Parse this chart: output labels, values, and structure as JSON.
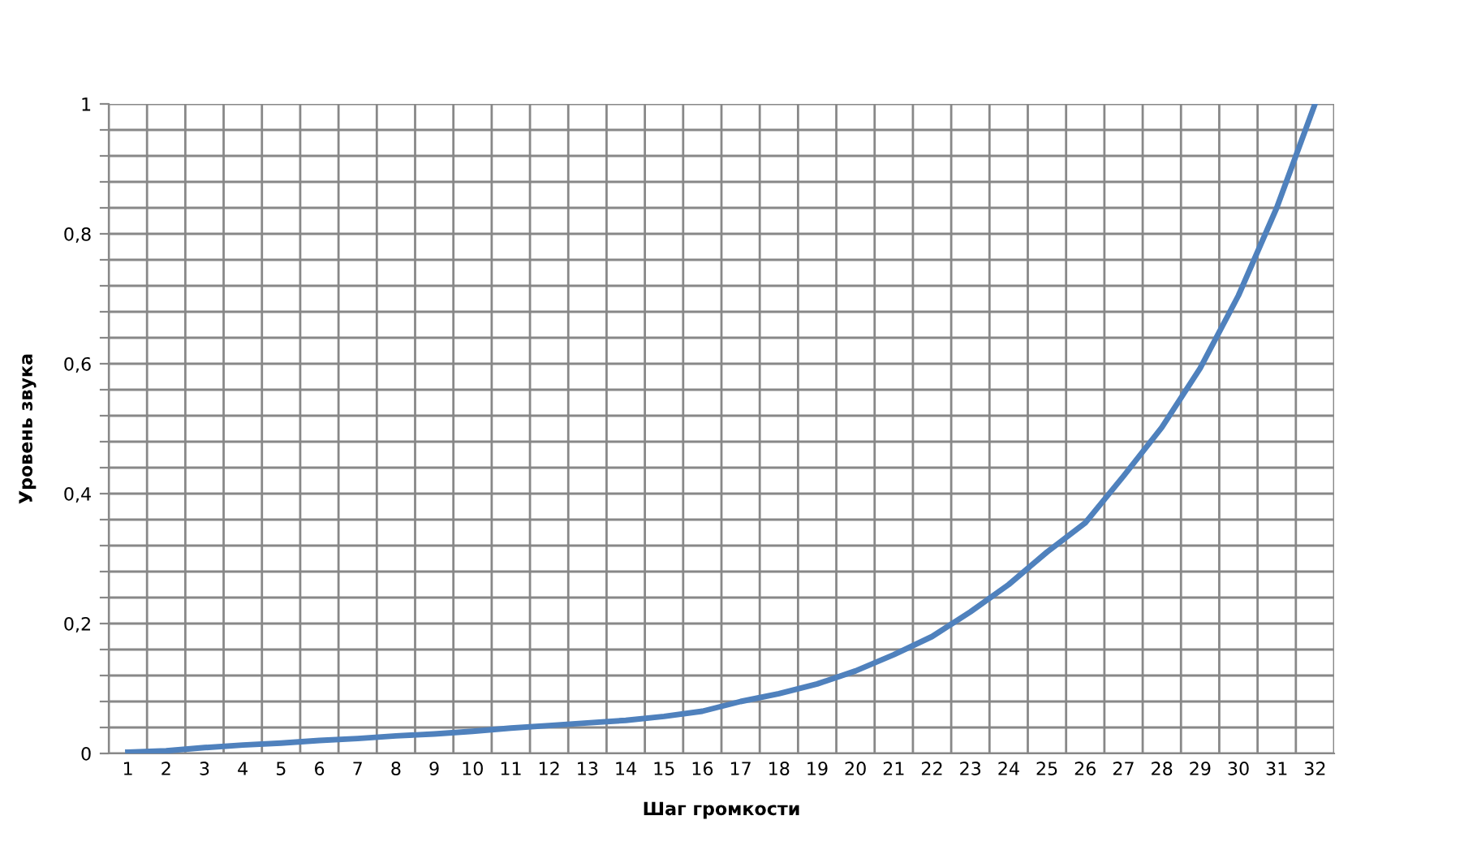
{
  "chart_data": {
    "type": "line",
    "xlabel": "Шаг громкости",
    "ylabel": "Уровень звука",
    "categories": [
      "1",
      "2",
      "3",
      "4",
      "5",
      "6",
      "7",
      "8",
      "9",
      "10",
      "11",
      "12",
      "13",
      "14",
      "15",
      "16",
      "17",
      "18",
      "19",
      "20",
      "21",
      "22",
      "23",
      "24",
      "25",
      "26",
      "27",
      "28",
      "29",
      "30",
      "31",
      "32"
    ],
    "series": [
      {
        "color": "#4f81bd",
        "values": [
          0.002,
          0.004,
          0.009,
          0.013,
          0.016,
          0.02,
          0.023,
          0.027,
          0.03,
          0.034,
          0.039,
          0.043,
          0.047,
          0.051,
          0.057,
          0.065,
          0.08,
          0.092,
          0.107,
          0.127,
          0.152,
          0.18,
          0.218,
          0.26,
          0.31,
          0.355,
          0.427,
          0.502,
          0.593,
          0.705,
          0.84,
          1.0
        ]
      }
    ],
    "ylim": [
      0,
      1
    ],
    "yticks": [
      {
        "value": 0,
        "label": "0"
      },
      {
        "value": 0.04,
        "label": null
      },
      {
        "value": 0.08,
        "label": null
      },
      {
        "value": 0.12,
        "label": null
      },
      {
        "value": 0.16,
        "label": null
      },
      {
        "value": 0.2,
        "label": "0,2"
      },
      {
        "value": 0.24,
        "label": null
      },
      {
        "value": 0.28,
        "label": null
      },
      {
        "value": 0.32,
        "label": null
      },
      {
        "value": 0.36,
        "label": null
      },
      {
        "value": 0.4,
        "label": "0,4"
      },
      {
        "value": 0.44,
        "label": null
      },
      {
        "value": 0.48,
        "label": null
      },
      {
        "value": 0.52,
        "label": null
      },
      {
        "value": 0.56,
        "label": null
      },
      {
        "value": 0.6,
        "label": "0,6"
      },
      {
        "value": 0.64,
        "label": null
      },
      {
        "value": 0.68,
        "label": null
      },
      {
        "value": 0.72,
        "label": null
      },
      {
        "value": 0.76,
        "label": null
      },
      {
        "value": 0.8,
        "label": "0,8"
      },
      {
        "value": 0.84,
        "label": null
      },
      {
        "value": 0.88,
        "label": null
      },
      {
        "value": 0.92,
        "label": null
      },
      {
        "value": 0.96,
        "label": null
      },
      {
        "value": 1,
        "label": "1"
      }
    ],
    "grid": true,
    "marker": "none",
    "line_style": "solid"
  }
}
